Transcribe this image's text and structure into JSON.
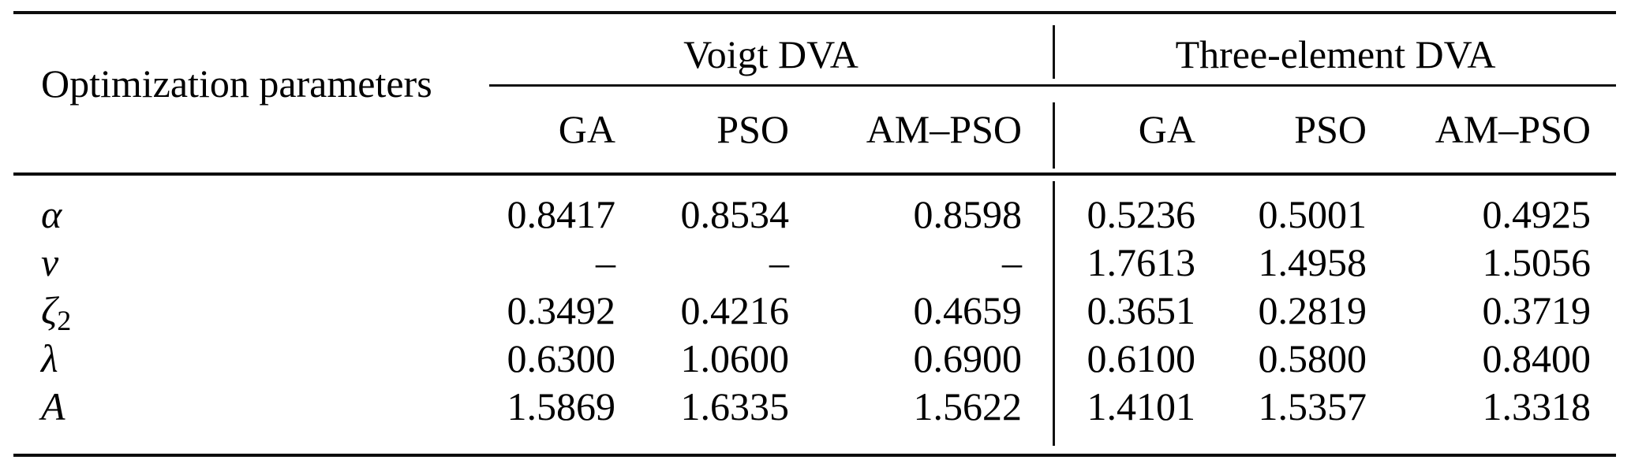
{
  "table": {
    "row_header": "Optimization parameters",
    "groups": [
      {
        "label": "Voigt DVA",
        "columns": [
          "GA",
          "PSO",
          "AM–PSO"
        ]
      },
      {
        "label": "Three-element DVA",
        "columns": [
          "GA",
          "PSO",
          "AM–PSO"
        ]
      }
    ],
    "rows": [
      {
        "symbol": "α",
        "subscript": "",
        "values": [
          "0.8417",
          "0.8534",
          "0.8598",
          "0.5236",
          "0.5001",
          "0.4925"
        ]
      },
      {
        "symbol": "v",
        "subscript": "",
        "values": [
          "–",
          "–",
          "–",
          "1.7613",
          "1.4958",
          "1.5056"
        ]
      },
      {
        "symbol": "ζ",
        "subscript": "2",
        "values": [
          "0.3492",
          "0.4216",
          "0.4659",
          "0.3651",
          "0.2819",
          "0.3719"
        ]
      },
      {
        "symbol": "λ",
        "subscript": "",
        "values": [
          "0.6300",
          "1.0600",
          "0.6900",
          "0.6100",
          "0.5800",
          "0.8400"
        ]
      },
      {
        "symbol": "A",
        "subscript": "",
        "values": [
          "1.5869",
          "1.6335",
          "1.5622",
          "1.4101",
          "1.5357",
          "1.3318"
        ]
      }
    ],
    "colors": {
      "text": "#000000",
      "rule": "#0d0d0d",
      "background": "#ffffff"
    }
  }
}
